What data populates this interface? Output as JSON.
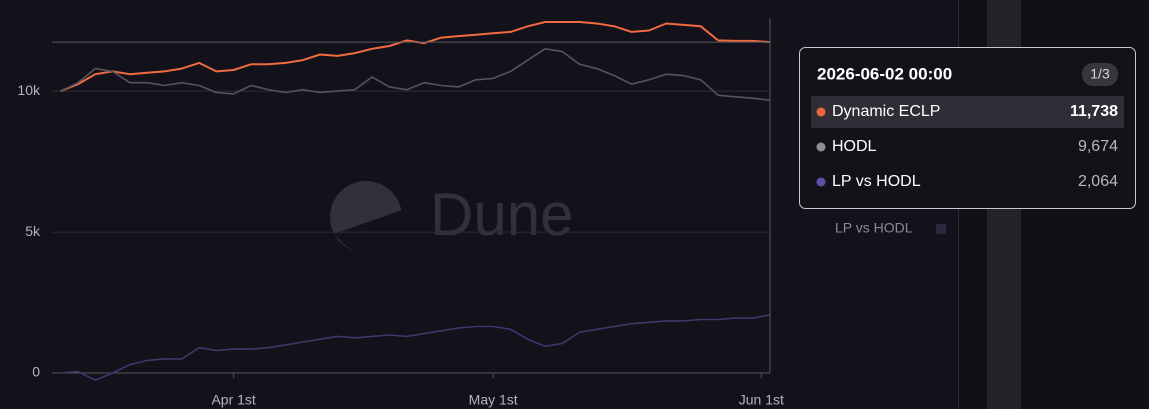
{
  "chart_data": {
    "type": "line",
    "watermark": "Dune",
    "x": [
      "2026-03-12",
      "2026-03-14",
      "2026-03-16",
      "2026-03-18",
      "2026-03-20",
      "2026-03-22",
      "2026-03-24",
      "2026-03-26",
      "2026-03-28",
      "2026-03-30",
      "2026-04-01",
      "2026-04-03",
      "2026-04-05",
      "2026-04-07",
      "2026-04-09",
      "2026-04-11",
      "2026-04-13",
      "2026-04-15",
      "2026-04-17",
      "2026-04-19",
      "2026-04-21",
      "2026-04-23",
      "2026-04-25",
      "2026-04-27",
      "2026-04-29",
      "2026-05-01",
      "2026-05-03",
      "2026-05-05",
      "2026-05-07",
      "2026-05-09",
      "2026-05-11",
      "2026-05-13",
      "2026-05-15",
      "2026-05-17",
      "2026-05-19",
      "2026-05-21",
      "2026-05-23",
      "2026-05-25",
      "2026-05-27",
      "2026-05-29",
      "2026-05-31",
      "2026-06-02"
    ],
    "series": [
      {
        "name": "Dynamic ECLP",
        "color": "#f06b42",
        "values": [
          10000,
          10250,
          10600,
          10700,
          10600,
          10650,
          10700,
          10800,
          11000,
          10700,
          10750,
          10950,
          10950,
          11000,
          11100,
          11300,
          11250,
          11350,
          11500,
          11600,
          11800,
          11700,
          11900,
          11950,
          12000,
          12050,
          12100,
          12300,
          12450,
          12450,
          12450,
          12400,
          12300,
          12100,
          12150,
          12400,
          12350,
          12300,
          11800,
          11780,
          11780,
          11738
        ]
      },
      {
        "name": "HODL",
        "color": "#55535b",
        "values": [
          10000,
          10300,
          10800,
          10700,
          10300,
          10300,
          10200,
          10300,
          10200,
          9950,
          9900,
          10200,
          10050,
          9950,
          10050,
          9950,
          10000,
          10050,
          10500,
          10150,
          10050,
          10300,
          10200,
          10150,
          10400,
          10450,
          10700,
          11100,
          11500,
          11400,
          10950,
          10800,
          10550,
          10250,
          10400,
          10600,
          10550,
          10400,
          9850,
          9800,
          9750,
          9674
        ]
      },
      {
        "name": "LP vs HODL",
        "color": "#3f376a",
        "values": [
          0,
          50,
          -250,
          0,
          300,
          450,
          500,
          500,
          900,
          800,
          850,
          850,
          900,
          1000,
          1100,
          1200,
          1300,
          1250,
          1300,
          1350,
          1300,
          1400,
          1500,
          1600,
          1650,
          1650,
          1550,
          1200,
          950,
          1050,
          1450,
          1550,
          1650,
          1750,
          1800,
          1850,
          1850,
          1900,
          1900,
          1950,
          1950,
          2064
        ]
      }
    ],
    "xlim": [
      "2026-03-11",
      "2026-06-02"
    ],
    "xticks": [
      {
        "value": "2026-04-01",
        "label": "Apr 1st"
      },
      {
        "value": "2026-05-01",
        "label": "May 1st"
      },
      {
        "value": "2026-06-01",
        "label": "Jun 1st"
      }
    ],
    "ylim": [
      -300,
      12700
    ],
    "yticks": [
      0,
      {
        "value": 5000,
        "label": "5k"
      },
      {
        "value": 10000,
        "label": "10k"
      }
    ],
    "grid": true,
    "tooltip": {
      "title": "2026-06-02 00:00",
      "page": "1/3",
      "value_labels": [
        "11,738",
        "9,674",
        "2,064"
      ]
    }
  }
}
